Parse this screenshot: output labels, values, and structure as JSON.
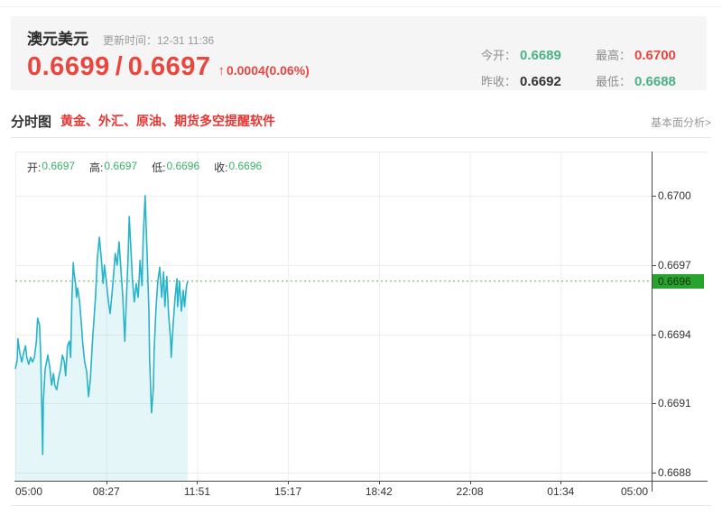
{
  "colors": {
    "red": "#e9463f",
    "green": "#4ab286",
    "legend_green": "#3cb068",
    "line": "#28b3c8",
    "fill": "rgba(40,179,200,0.12)",
    "grid": "#ededed",
    "axis": "#4a4a4a",
    "dotted": "#5aaa5a",
    "badge_bg": "#28a42e",
    "panel_bg": "#f5f5f5"
  },
  "quote_header": {
    "symbol_name": "澳元美元",
    "update_time": "更新时间：12-31 11:36",
    "bid": "0.6699",
    "separator": "/",
    "ask": "0.6697",
    "arrow": "↑",
    "change_text": "0.0004(0.06%)",
    "stats": [
      {
        "label": "今开：",
        "value": "0.6689",
        "color": "green"
      },
      {
        "label": "最高：",
        "value": "0.6700",
        "color": "red"
      },
      {
        "label": "昨收：",
        "value": "0.6692",
        "color": "dark"
      },
      {
        "label": "最低：",
        "value": "0.6688",
        "color": "green"
      }
    ]
  },
  "section_bar": {
    "title": "分时图",
    "promo_link": "黄金、外汇、原油、期货多空提醒软件",
    "right_link": "基本面分析>"
  },
  "chart_data": {
    "type": "line",
    "title": "AUD/USD intraday (分时图)",
    "legend": [
      {
        "label": "开:",
        "value": "0.6697"
      },
      {
        "label": "高:",
        "value": "0.6697"
      },
      {
        "label": "低:",
        "value": "0.6696"
      },
      {
        "label": "收:",
        "value": "0.6696"
      }
    ],
    "x_ticks": [
      "05:00",
      "08:27",
      "11:51",
      "15:17",
      "18:42",
      "22:08",
      "01:34",
      "05:00"
    ],
    "x_span_hours": 24,
    "y_ticks": [
      "0.6700",
      "0.6697",
      "0.6694",
      "0.6691",
      "0.6688"
    ],
    "ylim": [
      0.668766,
      0.670191
    ],
    "grid": true,
    "legend_position": "top-left",
    "last_price_label": "0.6696",
    "last_price": 0.66963,
    "series": [
      {
        "name": "price",
        "points": [
          [
            0.0,
            0.66925
          ],
          [
            0.003,
            0.66929
          ],
          [
            0.004,
            0.66938
          ],
          [
            0.007,
            0.66932
          ],
          [
            0.01,
            0.66928
          ],
          [
            0.013,
            0.66932
          ],
          [
            0.016,
            0.66935
          ],
          [
            0.018,
            0.6693
          ],
          [
            0.021,
            0.66927
          ],
          [
            0.024,
            0.6693
          ],
          [
            0.027,
            0.66928
          ],
          [
            0.03,
            0.6693
          ],
          [
            0.033,
            0.66937
          ],
          [
            0.035,
            0.66947
          ],
          [
            0.038,
            0.66944
          ],
          [
            0.04,
            0.6693
          ],
          [
            0.043,
            0.66888
          ],
          [
            0.044,
            0.66911
          ],
          [
            0.047,
            0.66925
          ],
          [
            0.051,
            0.66931
          ],
          [
            0.054,
            0.66926
          ],
          [
            0.057,
            0.66918
          ],
          [
            0.06,
            0.66923
          ],
          [
            0.062,
            0.66918
          ],
          [
            0.065,
            0.66916
          ],
          [
            0.068,
            0.66921
          ],
          [
            0.071,
            0.66925
          ],
          [
            0.074,
            0.66931
          ],
          [
            0.077,
            0.66928
          ],
          [
            0.079,
            0.66922
          ],
          [
            0.082,
            0.66935
          ],
          [
            0.085,
            0.66937
          ],
          [
            0.087,
            0.6693
          ],
          [
            0.089,
            0.66956
          ],
          [
            0.091,
            0.66971
          ],
          [
            0.092,
            0.66967
          ],
          [
            0.095,
            0.66961
          ],
          [
            0.096,
            0.66956
          ],
          [
            0.098,
            0.6696
          ],
          [
            0.101,
            0.66954
          ],
          [
            0.104,
            0.66944
          ],
          [
            0.106,
            0.66936
          ],
          [
            0.109,
            0.66928
          ],
          [
            0.112,
            0.66924
          ],
          [
            0.115,
            0.66913
          ],
          [
            0.118,
            0.66921
          ],
          [
            0.121,
            0.66936
          ],
          [
            0.123,
            0.66944
          ],
          [
            0.126,
            0.66956
          ],
          [
            0.129,
            0.66973
          ],
          [
            0.132,
            0.66982
          ],
          [
            0.135,
            0.66973
          ],
          [
            0.138,
            0.66962
          ],
          [
            0.14,
            0.6697
          ],
          [
            0.143,
            0.66963
          ],
          [
            0.146,
            0.66955
          ],
          [
            0.149,
            0.66949
          ],
          [
            0.152,
            0.66958
          ],
          [
            0.155,
            0.66968
          ],
          [
            0.157,
            0.66975
          ],
          [
            0.16,
            0.6697
          ],
          [
            0.163,
            0.6698
          ],
          [
            0.166,
            0.66968
          ],
          [
            0.169,
            0.66956
          ],
          [
            0.172,
            0.66937
          ],
          [
            0.174,
            0.66952
          ],
          [
            0.177,
            0.66972
          ],
          [
            0.179,
            0.66991
          ],
          [
            0.182,
            0.66975
          ],
          [
            0.184,
            0.66964
          ],
          [
            0.187,
            0.66954
          ],
          [
            0.19,
            0.66962
          ],
          [
            0.193,
            0.66956
          ],
          [
            0.196,
            0.66972
          ],
          [
            0.199,
            0.66961
          ],
          [
            0.201,
            0.66982
          ],
          [
            0.204,
            0.67
          ],
          [
            0.207,
            0.66976
          ],
          [
            0.21,
            0.6695
          ],
          [
            0.211,
            0.66929
          ],
          [
            0.214,
            0.66906
          ],
          [
            0.217,
            0.66917
          ],
          [
            0.218,
            0.66932
          ],
          [
            0.221,
            0.66951
          ],
          [
            0.224,
            0.66963
          ],
          [
            0.227,
            0.66969
          ],
          [
            0.23,
            0.66956
          ],
          [
            0.233,
            0.66967
          ],
          [
            0.235,
            0.66952
          ],
          [
            0.238,
            0.66965
          ],
          [
            0.241,
            0.66948
          ],
          [
            0.244,
            0.66938
          ],
          [
            0.245,
            0.6693
          ],
          [
            0.248,
            0.66944
          ],
          [
            0.251,
            0.66956
          ],
          [
            0.254,
            0.66964
          ],
          [
            0.255,
            0.66952
          ],
          [
            0.258,
            0.66963
          ],
          [
            0.261,
            0.6695
          ],
          [
            0.264,
            0.66959
          ],
          [
            0.266,
            0.66952
          ],
          [
            0.269,
            0.66961
          ],
          [
            0.271,
            0.66963
          ]
        ]
      }
    ]
  }
}
